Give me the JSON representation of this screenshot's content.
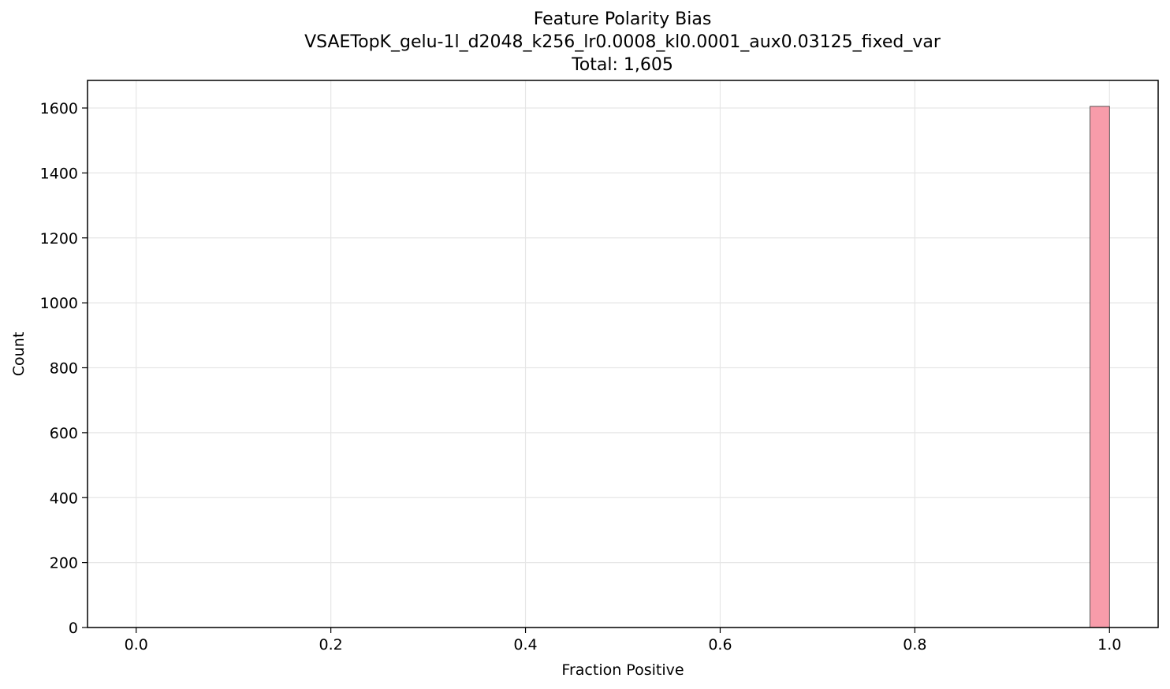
{
  "chart_data": {
    "type": "bar",
    "title": "Feature Polarity Bias",
    "subtitle": "VSAETopK_gelu-1l_d2048_k256_lr0.0008_kl0.0001_aux0.03125_fixed_var",
    "total_label": "Total: 1,605",
    "xlabel": "Fraction Positive",
    "ylabel": "Count",
    "xlim": [
      -0.05,
      1.05
    ],
    "ylim": [
      0,
      1685
    ],
    "x_ticks": [
      0.0,
      0.2,
      0.4,
      0.6,
      0.8,
      1.0
    ],
    "x_tick_labels": [
      "0.0",
      "0.2",
      "0.4",
      "0.6",
      "0.8",
      "1.0"
    ],
    "y_ticks": [
      0,
      200,
      400,
      600,
      800,
      1000,
      1200,
      1400,
      1600
    ],
    "y_tick_labels": [
      "0",
      "200",
      "400",
      "600",
      "800",
      "1000",
      "1200",
      "1400",
      "1600"
    ],
    "grid": true,
    "bars": [
      {
        "x_start": 0.98,
        "x_end": 1.0,
        "value": 1605
      }
    ],
    "bar_color": "#f89caa",
    "bar_edge_color": "#333333"
  }
}
